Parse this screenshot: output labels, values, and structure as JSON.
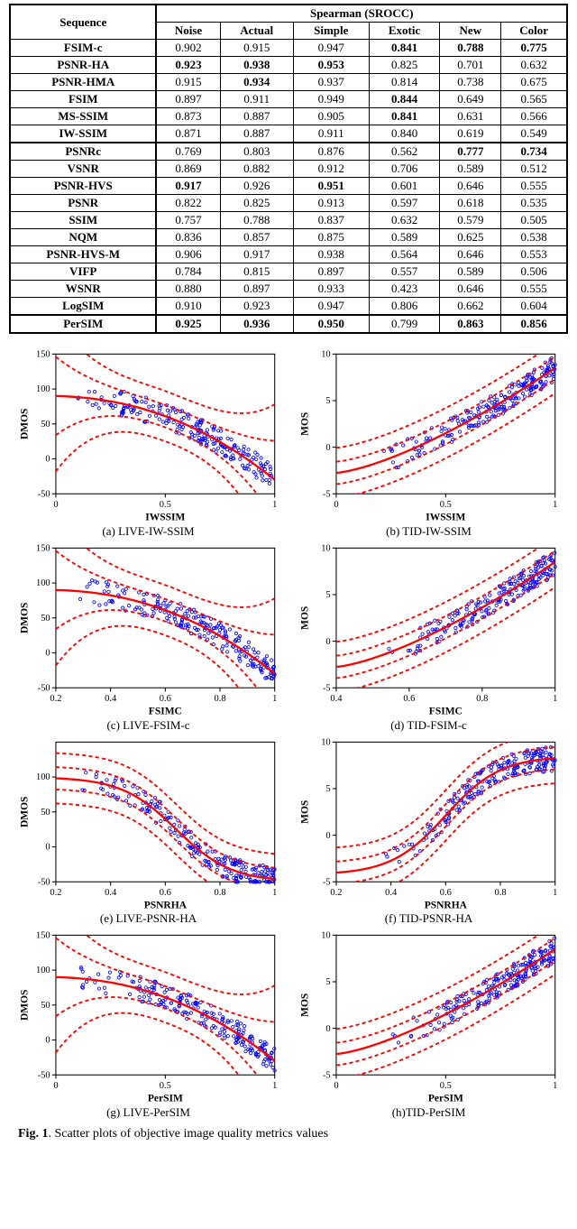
{
  "table": {
    "header_row1": {
      "sequence": "Sequence",
      "group": "Spearman (SROCC)"
    },
    "columns": [
      "Noise",
      "Actual",
      "Simple",
      "Exotic",
      "New",
      "Color"
    ],
    "rows": [
      {
        "name": "FSIM-c",
        "vals": [
          "0.902",
          "0.915",
          "0.947",
          "0.841",
          "0.788",
          "0.775"
        ],
        "bold": [
          0,
          0,
          0,
          1,
          1,
          1
        ]
      },
      {
        "name": "PSNR-HA",
        "vals": [
          "0.923",
          "0.938",
          "0.953",
          "0.825",
          "0.701",
          "0.632"
        ],
        "bold": [
          1,
          1,
          1,
          0,
          0,
          0
        ]
      },
      {
        "name": "PSNR-HMA",
        "vals": [
          "0.915",
          "0.934",
          "0.937",
          "0.814",
          "0.738",
          "0.675"
        ],
        "bold": [
          0,
          1,
          0,
          0,
          0,
          0
        ]
      },
      {
        "name": "FSIM",
        "vals": [
          "0.897",
          "0.911",
          "0.949",
          "0.844",
          "0.649",
          "0.565"
        ],
        "bold": [
          0,
          0,
          0,
          1,
          0,
          0
        ]
      },
      {
        "name": "MS-SSIM",
        "vals": [
          "0.873",
          "0.887",
          "0.905",
          "0.841",
          "0.631",
          "0.566"
        ],
        "bold": [
          0,
          0,
          0,
          1,
          0,
          0
        ]
      },
      {
        "name": "IW-SSIM",
        "vals": [
          "0.871",
          "0.887",
          "0.911",
          "0.840",
          "0.619",
          "0.549"
        ],
        "bold": [
          0,
          0,
          0,
          0,
          0,
          0
        ]
      },
      {
        "name": "PSNRc",
        "vals": [
          "0.769",
          "0.803",
          "0.876",
          "0.562",
          "0.777",
          "0.734"
        ],
        "bold": [
          0,
          0,
          0,
          0,
          1,
          1
        ],
        "sep": true
      },
      {
        "name": "VSNR",
        "vals": [
          "0.869",
          "0.882",
          "0.912",
          "0.706",
          "0.589",
          "0.512"
        ],
        "bold": [
          0,
          0,
          0,
          0,
          0,
          0
        ]
      },
      {
        "name": "PSNR-HVS",
        "vals": [
          "0.917",
          "0.926",
          "0.951",
          "0.601",
          "0.646",
          "0.555"
        ],
        "bold": [
          1,
          0,
          1,
          0,
          0,
          0
        ]
      },
      {
        "name": "PSNR",
        "vals": [
          "0.822",
          "0.825",
          "0.913",
          "0.597",
          "0.618",
          "0.535"
        ],
        "bold": [
          0,
          0,
          0,
          0,
          0,
          0
        ]
      },
      {
        "name": "SSIM",
        "vals": [
          "0.757",
          "0.788",
          "0.837",
          "0.632",
          "0.579",
          "0.505"
        ],
        "bold": [
          0,
          0,
          0,
          0,
          0,
          0
        ]
      },
      {
        "name": "NQM",
        "vals": [
          "0.836",
          "0.857",
          "0.875",
          "0.589",
          "0.625",
          "0.538"
        ],
        "bold": [
          0,
          0,
          0,
          0,
          0,
          0
        ]
      },
      {
        "name": "PSNR-HVS-M",
        "vals": [
          "0.906",
          "0.917",
          "0.938",
          "0.564",
          "0.646",
          "0.553"
        ],
        "bold": [
          0,
          0,
          0,
          0,
          0,
          0
        ]
      },
      {
        "name": "VIFP",
        "vals": [
          "0.784",
          "0.815",
          "0.897",
          "0.557",
          "0.589",
          "0.506"
        ],
        "bold": [
          0,
          0,
          0,
          0,
          0,
          0
        ]
      },
      {
        "name": "WSNR",
        "vals": [
          "0.880",
          "0.897",
          "0.933",
          "0.423",
          "0.646",
          "0.555"
        ],
        "bold": [
          0,
          0,
          0,
          0,
          0,
          0
        ]
      },
      {
        "name": "LogSIM",
        "vals": [
          "0.910",
          "0.923",
          "0.947",
          "0.806",
          "0.662",
          "0.604"
        ],
        "bold": [
          0,
          0,
          0,
          0,
          0,
          0
        ]
      },
      {
        "name": "PerSIM",
        "vals": [
          "0.925",
          "0.936",
          "0.950",
          "0.799",
          "0.863",
          "0.856"
        ],
        "bold": [
          1,
          1,
          1,
          0,
          1,
          1
        ],
        "sep": true
      }
    ],
    "bottom_border": true
  },
  "figure": {
    "panels": [
      {
        "type": "scatter",
        "xlabel": "IWSSIM",
        "ylabel": "DMOS",
        "xlim": [
          0,
          1
        ],
        "xticks": [
          0,
          0.5,
          1
        ],
        "ylim": [
          -50,
          150
        ],
        "yticks": [
          -50,
          0,
          50,
          100,
          150
        ],
        "curve": "decreasing",
        "caption": "(a) LIVE-IW-SSIM"
      },
      {
        "type": "scatter",
        "xlabel": "IWSSIM",
        "ylabel": "MOS",
        "xlim": [
          0,
          1
        ],
        "xticks": [
          0,
          0.5,
          1
        ],
        "ylim": [
          -5,
          10
        ],
        "yticks": [
          -5,
          0,
          5,
          10
        ],
        "curve": "increasing",
        "caption": "(b) TID-IW-SSIM"
      },
      {
        "type": "scatter",
        "xlabel": "FSIMC",
        "ylabel": "DMOS",
        "xlim": [
          0.2,
          1
        ],
        "xticks": [
          0.2,
          0.4,
          0.6,
          0.8,
          1
        ],
        "ylim": [
          -50,
          150
        ],
        "yticks": [
          -50,
          0,
          50,
          100,
          150
        ],
        "curve": "decreasing",
        "caption": "(c) LIVE-FSIM-c"
      },
      {
        "type": "scatter",
        "xlabel": "FSIMC",
        "ylabel": "MOS",
        "xlim": [
          0.4,
          1
        ],
        "xticks": [
          0.4,
          0.6,
          0.8,
          1
        ],
        "ylim": [
          -5,
          10
        ],
        "yticks": [
          -5,
          0,
          5,
          10
        ],
        "curve": "increasing",
        "caption": "(d) TID-FSIM-c"
      },
      {
        "type": "scatter",
        "xlabel": "PSNRHA",
        "ylabel": "DMOS",
        "xlim": [
          0.2,
          1
        ],
        "xticks": [
          0.2,
          0.4,
          0.6,
          0.8,
          1
        ],
        "ylim": [
          -50,
          150
        ],
        "yticks": [
          -50,
          0,
          50,
          100
        ],
        "curve": "s_decreasing",
        "caption": "(e) LIVE-PSNR-HA"
      },
      {
        "type": "scatter",
        "xlabel": "PSNRHA",
        "ylabel": "MOS",
        "xlim": [
          0.2,
          1
        ],
        "xticks": [
          0.2,
          0.4,
          0.6,
          0.8,
          1
        ],
        "ylim": [
          -5,
          10
        ],
        "yticks": [
          -5,
          0,
          5,
          10
        ],
        "curve": "s_increasing",
        "caption": "(f) TID-PSNR-HA"
      },
      {
        "type": "scatter",
        "xlabel": "PerSIM",
        "ylabel": "DMOS",
        "xlim": [
          0,
          1
        ],
        "xticks": [
          0,
          0.5,
          1
        ],
        "ylim": [
          -50,
          150
        ],
        "yticks": [
          -50,
          0,
          50,
          100,
          150
        ],
        "curve": "decreasing",
        "caption": "(g) LIVE-PerSIM"
      },
      {
        "type": "scatter",
        "xlabel": "PerSIM",
        "ylabel": "MOS",
        "xlim": [
          0,
          1
        ],
        "xticks": [
          0,
          0.5,
          1
        ],
        "ylim": [
          -5,
          10
        ],
        "yticks": [
          -5,
          0,
          5,
          10
        ],
        "curve": "increasing",
        "caption": "(h)TID-PerSIM"
      }
    ],
    "colors": {
      "scatter": "#0000ff",
      "curve": "#ff0000",
      "axis": "#000000",
      "bg": "#ffffff"
    },
    "point_count": 220,
    "caption": "Fig. 1. Scatter plots of objective image quality metrics values"
  }
}
